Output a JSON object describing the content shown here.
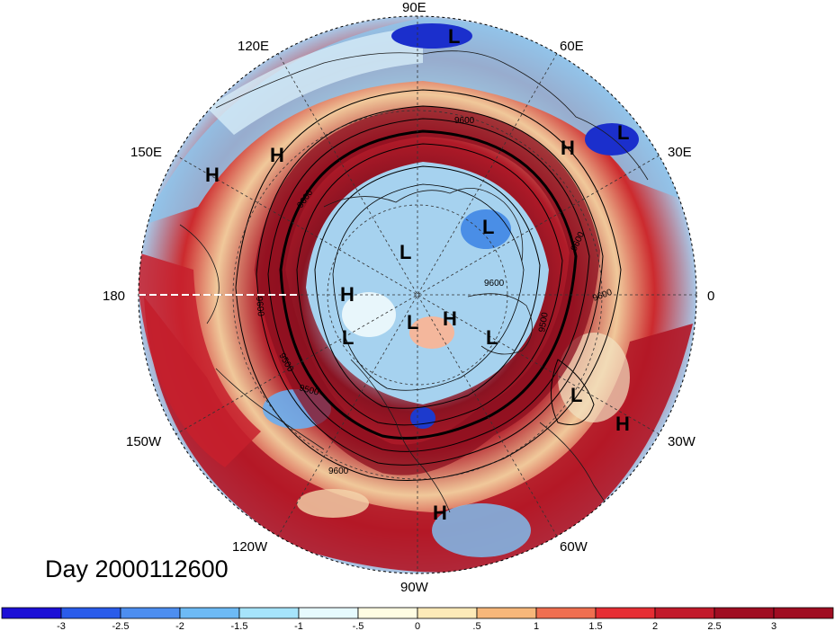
{
  "title": "Day 2000112600",
  "map": {
    "projection": "north-polar-stereographic",
    "longitude_labels": [
      "90E",
      "60E",
      "30E",
      "0",
      "30W",
      "60W",
      "90W",
      "120W",
      "150W",
      "180",
      "150E",
      "120E"
    ],
    "pressure_centers": [
      {
        "type": "L",
        "region": "northern Siberia"
      },
      {
        "type": "L",
        "region": "Ural / western Siberia"
      },
      {
        "type": "H",
        "region": "Europe"
      },
      {
        "type": "H",
        "region": "north Pacific / Kamchatka"
      },
      {
        "type": "H",
        "region": "east Asia"
      },
      {
        "type": "L",
        "region": "Arctic ocean"
      },
      {
        "type": "L",
        "region": "Arctic ocean near Severnaya"
      },
      {
        "type": "H",
        "region": "Beaufort sea"
      },
      {
        "type": "L",
        "region": "Alaska"
      },
      {
        "type": "L",
        "region": "Arctic Canada"
      },
      {
        "type": "H",
        "region": "Greenland"
      },
      {
        "type": "L",
        "region": "Greenland sea"
      },
      {
        "type": "L",
        "region": "north Atlantic"
      },
      {
        "type": "H",
        "region": "subtropical Atlantic"
      },
      {
        "type": "H",
        "region": "Caribbean / Central America"
      }
    ],
    "contour_labels": [
      "9600",
      "9600",
      "9600",
      "9500",
      "9500",
      "9600",
      "9600",
      "9500",
      "9600",
      "9600"
    ],
    "colors": {
      "strong_negative": "#1515b8",
      "negative": "#56a8ee",
      "near_zero": "#fffde0",
      "positive": "#ee3030",
      "strong_positive": "#a50f1e"
    }
  },
  "colorbar": {
    "tick_labels": [
      "-3",
      "-2.5",
      "-2",
      "-1.5",
      "-1",
      "-.5",
      "0",
      ".5",
      "1",
      "1.5",
      "2",
      "2.5",
      "3"
    ],
    "colors": [
      "#1c0fd6",
      "#2a5cea",
      "#4d8ef0",
      "#6dbaf5",
      "#a6e4fb",
      "#e6fafe",
      "#fffde3",
      "#fdeab8",
      "#f7b77a",
      "#ef6f50",
      "#e62e34",
      "#c21a2b",
      "#a00d22"
    ]
  }
}
